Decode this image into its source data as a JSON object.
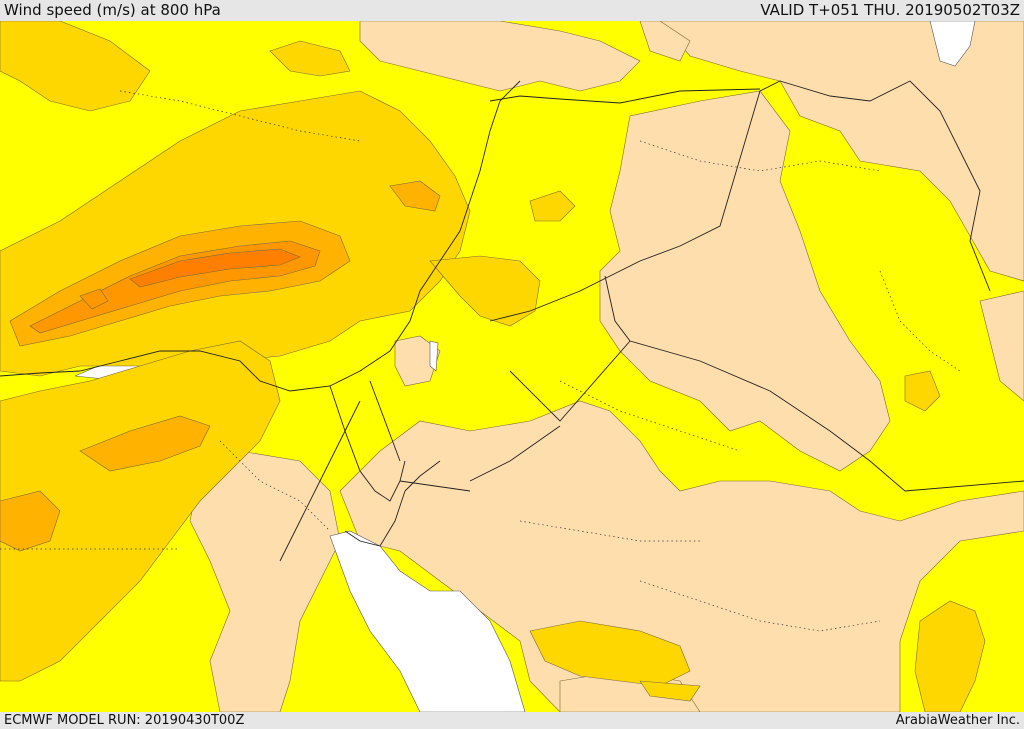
{
  "header": {
    "title": "Wind speed (m/s) at 800 hPa",
    "valid": "VALID T+051 THU. 20190502T03Z"
  },
  "footer": {
    "run": "ECMWF MODEL RUN: 20190430T00Z",
    "credit": "ArabiaWeather Inc."
  },
  "map": {
    "variable": "wind speed",
    "units": "m/s",
    "level": "800 hPa",
    "colors": {
      "calm": "#ffdead",
      "light": "#ffff00",
      "moderate": "#ffd700",
      "fresh": "#ffb300",
      "strong": "#ff9800",
      "very_strong": "#ff8000",
      "no_data": "#ffffff"
    }
  }
}
